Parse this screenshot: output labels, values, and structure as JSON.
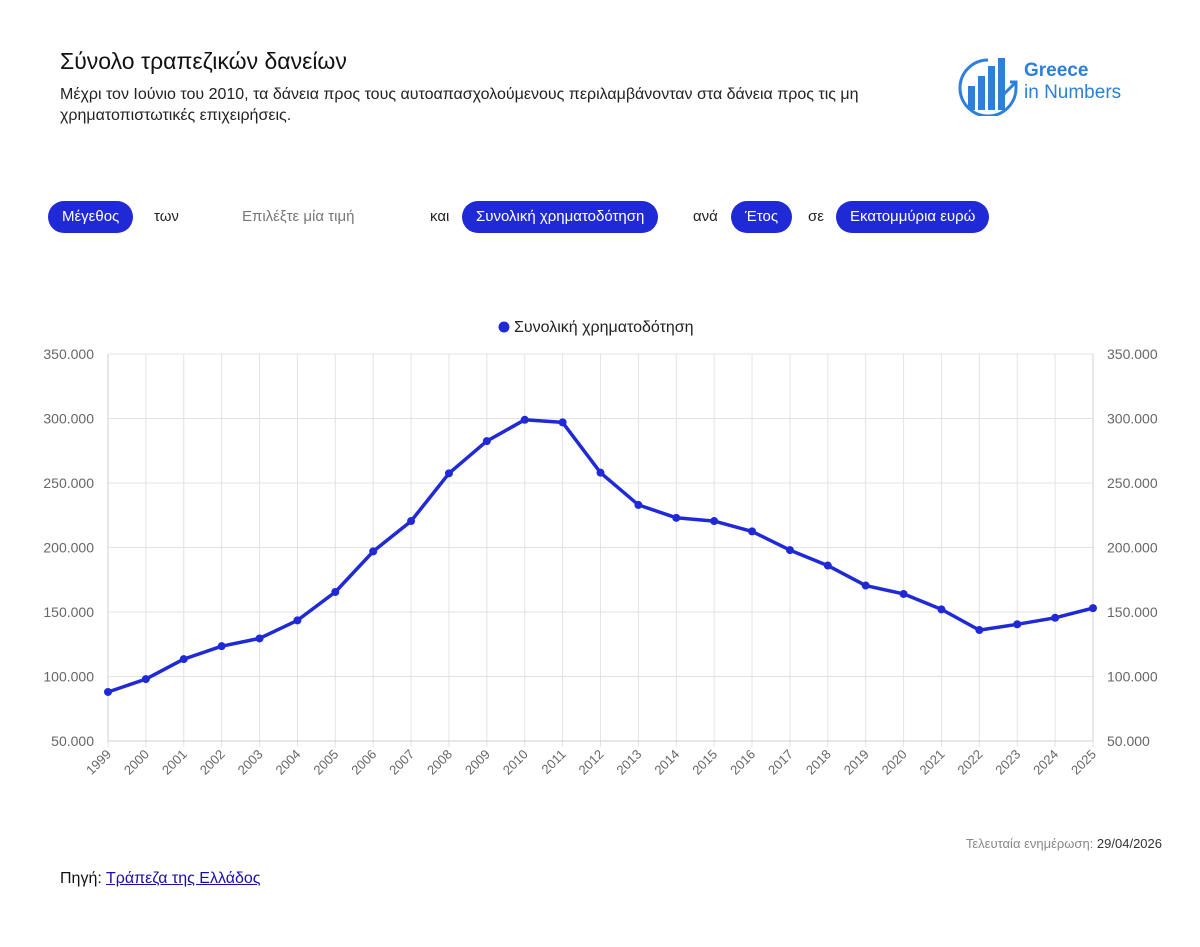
{
  "header": {
    "title": "Σύνολο τραπεζικών δανείων",
    "subtitle": "Μέχρι τον Ιούνιο του 2010, τα δάνεια προς τους αυτοαπασχολούμενους περιλαμβάνονταν στα δάνεια προς τις μη χρηματοπιστωτικές επιχειρήσεις."
  },
  "logo": {
    "line1": "Greece",
    "line2": "in Numbers",
    "color": "#2e7fd9"
  },
  "controls": {
    "measure": "Μέγεθος",
    "word_of": "των",
    "select_placeholder": "Επιλέξτε μία τιμή",
    "word_and": "και",
    "series_select": "Συνολική χρηματοδότηση",
    "word_per": "ανά",
    "period_select": "Έτος",
    "word_in": "σε",
    "unit_select": "Εκατομμύρια ευρώ"
  },
  "chart_data": {
    "type": "line",
    "x": [
      "1999",
      "2000",
      "2001",
      "2002",
      "2003",
      "2004",
      "2005",
      "2006",
      "2007",
      "2008",
      "2009",
      "2010",
      "2011",
      "2012",
      "2013",
      "2014",
      "2015",
      "2016",
      "2017",
      "2018",
      "2019",
      "2020",
      "2021",
      "2022",
      "2023",
      "2024",
      "2025"
    ],
    "series": [
      {
        "name": "Συνολική χρηματοδότηση",
        "color": "#1f2ad6",
        "values": [
          88000,
          98000,
          113500,
          123500,
          129500,
          143500,
          165500,
          197000,
          220500,
          257500,
          282500,
          299000,
          297000,
          258000,
          233000,
          223000,
          220500,
          212500,
          198000,
          186000,
          170500,
          164000,
          152000,
          136000,
          140500,
          145500,
          153000
        ]
      }
    ],
    "ylim": [
      50000,
      350000
    ],
    "yticks": [
      50000,
      100000,
      150000,
      200000,
      250000,
      300000,
      350000
    ],
    "ytick_labels": [
      "50.000",
      "100.000",
      "150.000",
      "200.000",
      "250.000",
      "300.000",
      "350.000"
    ],
    "grid": true,
    "legend_position": "top-center",
    "y_axes": "left and right"
  },
  "footer": {
    "updated_label": "Τελευταία ενημέρωση:",
    "updated_date": "29/04/2026",
    "source_label": "Πηγή:",
    "source_link": "Τράπεζα της Ελλάδος"
  }
}
